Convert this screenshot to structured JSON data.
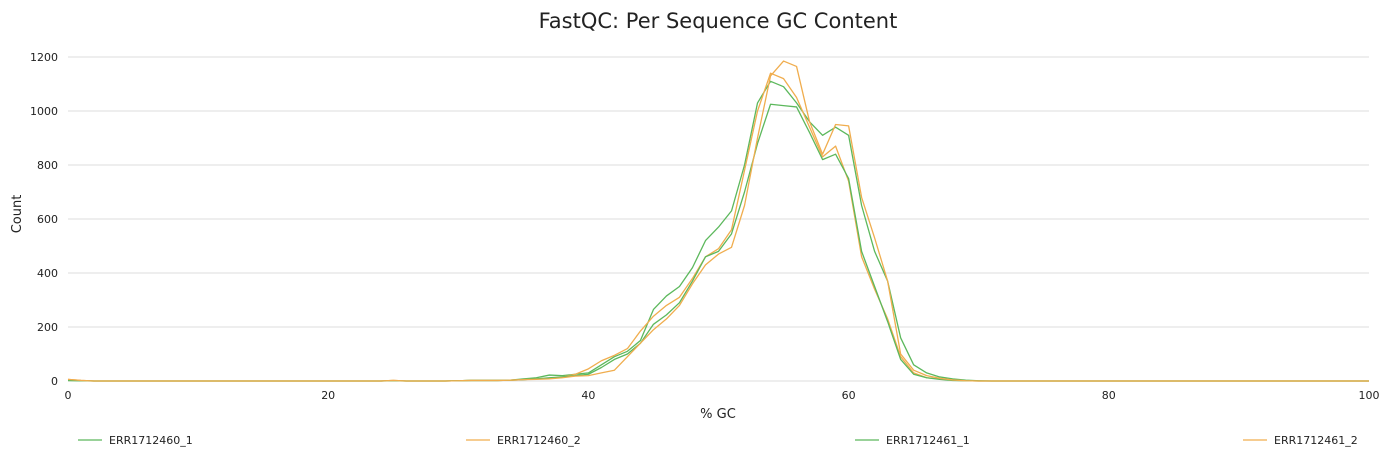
{
  "chart_data": {
    "type": "line",
    "title": "FastQC: Per Sequence GC Content",
    "xlabel": "% GC",
    "ylabel": "Count",
    "xlim": [
      0,
      100
    ],
    "ylim": [
      0,
      1200
    ],
    "x_ticks": [
      0,
      20,
      40,
      60,
      80,
      100
    ],
    "y_ticks": [
      0,
      200,
      400,
      600,
      800,
      1000,
      1200
    ],
    "grid": "horizontal",
    "legend_position": "bottom",
    "x": [
      0,
      1,
      2,
      3,
      4,
      5,
      6,
      7,
      8,
      9,
      10,
      11,
      12,
      13,
      14,
      15,
      16,
      17,
      18,
      19,
      20,
      21,
      22,
      23,
      24,
      25,
      26,
      27,
      28,
      29,
      30,
      31,
      32,
      33,
      34,
      35,
      36,
      37,
      38,
      39,
      40,
      41,
      42,
      43,
      44,
      45,
      46,
      47,
      48,
      49,
      50,
      51,
      52,
      53,
      54,
      55,
      56,
      57,
      58,
      59,
      60,
      61,
      62,
      63,
      64,
      65,
      66,
      67,
      68,
      69,
      70,
      71,
      72,
      73,
      74,
      75,
      76,
      77,
      78,
      79,
      80,
      81,
      82,
      83,
      84,
      85,
      86,
      87,
      88,
      89,
      90,
      91,
      92,
      93,
      94,
      95,
      96,
      97,
      98,
      99,
      100
    ],
    "series": [
      {
        "name": "ERR1712460_1",
        "color": "#5cb85c",
        "values": [
          2,
          1,
          0,
          0,
          0,
          0,
          0,
          0,
          0,
          0,
          0,
          0,
          0,
          0,
          0,
          0,
          0,
          0,
          0,
          0,
          0,
          0,
          0,
          0,
          0,
          1,
          0,
          0,
          0,
          0,
          1,
          2,
          2,
          2,
          3,
          8,
          12,
          22,
          20,
          25,
          30,
          60,
          90,
          110,
          150,
          265,
          315,
          350,
          420,
          520,
          570,
          630,
          800,
          1030,
          1110,
          1090,
          1030,
          960,
          910,
          940,
          910,
          650,
          480,
          370,
          160,
          60,
          30,
          15,
          8,
          3,
          1,
          0,
          0,
          0,
          0,
          0,
          0,
          0,
          0,
          0,
          0,
          0,
          0,
          0,
          0,
          0,
          0,
          0,
          0,
          0,
          0,
          0,
          0,
          0,
          0,
          0,
          0,
          0,
          0,
          0,
          0
        ]
      },
      {
        "name": "ERR1712460_2",
        "color": "#f0ad4e",
        "values": [
          6,
          2,
          0,
          0,
          0,
          0,
          0,
          0,
          0,
          0,
          0,
          0,
          0,
          0,
          0,
          0,
          0,
          0,
          0,
          0,
          0,
          0,
          0,
          0,
          0,
          2,
          0,
          0,
          0,
          0,
          1,
          2,
          2,
          2,
          3,
          5,
          8,
          10,
          15,
          25,
          45,
          75,
          95,
          120,
          185,
          240,
          280,
          310,
          380,
          460,
          490,
          560,
          780,
          1000,
          1140,
          1120,
          1050,
          940,
          830,
          870,
          740,
          460,
          340,
          230,
          90,
          30,
          12,
          8,
          3,
          1,
          0,
          0,
          0,
          0,
          0,
          0,
          0,
          0,
          0,
          0,
          0,
          0,
          0,
          0,
          0,
          0,
          0,
          0,
          0,
          0,
          0,
          0,
          0,
          0,
          0,
          0,
          0,
          0,
          0,
          0,
          0
        ]
      },
      {
        "name": "ERR1712461_1",
        "color": "#5cb85c",
        "values": [
          2,
          1,
          0,
          0,
          0,
          0,
          0,
          0,
          0,
          0,
          0,
          0,
          0,
          0,
          0,
          0,
          0,
          0,
          0,
          0,
          0,
          0,
          0,
          0,
          0,
          1,
          0,
          0,
          0,
          0,
          1,
          2,
          2,
          2,
          3,
          5,
          8,
          12,
          15,
          20,
          25,
          50,
          80,
          100,
          140,
          210,
          245,
          290,
          370,
          460,
          480,
          545,
          700,
          880,
          1025,
          1020,
          1015,
          920,
          820,
          840,
          750,
          480,
          350,
          220,
          80,
          25,
          12,
          6,
          2,
          1,
          0,
          0,
          0,
          0,
          0,
          0,
          0,
          0,
          0,
          0,
          0,
          0,
          0,
          0,
          0,
          0,
          0,
          0,
          0,
          0,
          0,
          0,
          0,
          0,
          0,
          0,
          0,
          0,
          0,
          0,
          0
        ]
      },
      {
        "name": "ERR1712461_2",
        "color": "#f0ad4e",
        "values": [
          6,
          2,
          0,
          0,
          0,
          0,
          0,
          0,
          0,
          0,
          0,
          0,
          0,
          0,
          0,
          0,
          0,
          0,
          0,
          0,
          0,
          0,
          0,
          0,
          0,
          2,
          0,
          0,
          0,
          0,
          1,
          2,
          2,
          2,
          3,
          5,
          6,
          8,
          12,
          18,
          20,
          30,
          40,
          90,
          140,
          190,
          230,
          280,
          360,
          430,
          470,
          495,
          650,
          900,
          1130,
          1185,
          1165,
          960,
          840,
          950,
          945,
          680,
          530,
          370,
          100,
          40,
          20,
          10,
          4,
          1,
          0,
          0,
          0,
          0,
          0,
          0,
          0,
          0,
          0,
          0,
          0,
          0,
          0,
          0,
          0,
          0,
          0,
          0,
          0,
          0,
          0,
          0,
          0,
          0,
          0,
          0,
          0,
          0,
          0,
          0,
          0
        ]
      }
    ]
  }
}
